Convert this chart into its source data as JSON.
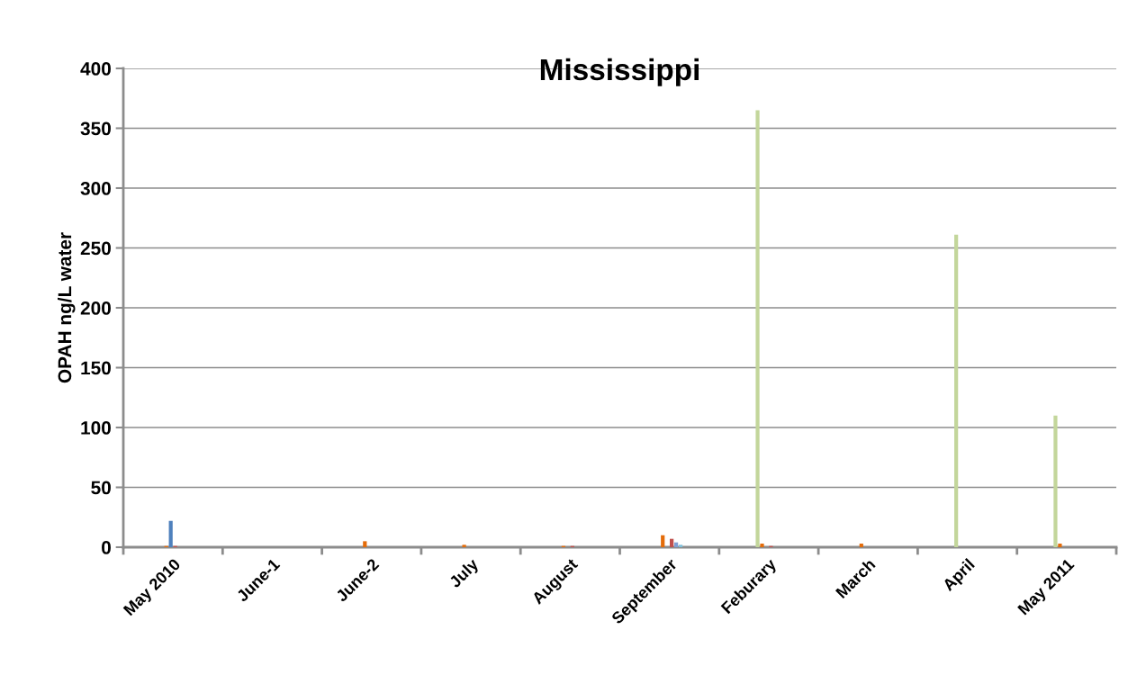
{
  "chart_data": {
    "type": "bar",
    "title": "Mississippi",
    "ylabel": "OPAH ng/L water",
    "categories": [
      "May 2010",
      "June-1",
      "June-2",
      "July",
      "August",
      "September",
      "Feburary",
      "March",
      "April",
      "May 2011"
    ],
    "series": [
      {
        "color": "#c3d69b",
        "values": [
          null,
          null,
          null,
          null,
          null,
          null,
          365,
          null,
          261,
          110
        ]
      },
      {
        "color": "#e46c0a",
        "values": [
          1,
          null,
          5,
          2,
          1,
          10,
          3,
          3,
          null,
          3
        ]
      },
      {
        "color": "#4f81bd",
        "values": [
          22,
          null,
          null,
          null,
          null,
          null,
          null,
          null,
          null,
          null
        ]
      },
      {
        "color": "#c0504d",
        "values": [
          1,
          null,
          null,
          null,
          1,
          7,
          1,
          null,
          null,
          null
        ]
      },
      {
        "color": "#7f9fd4",
        "values": [
          null,
          null,
          null,
          null,
          null,
          4,
          null,
          null,
          null,
          null
        ]
      },
      {
        "color": "#7fbfd9",
        "values": [
          null,
          null,
          null,
          null,
          null,
          2,
          null,
          null,
          null,
          null
        ]
      }
    ],
    "ylim": [
      0,
      400
    ],
    "yticks": [
      0,
      50,
      100,
      150,
      200,
      250,
      300,
      350,
      400
    ],
    "grid": "y"
  }
}
